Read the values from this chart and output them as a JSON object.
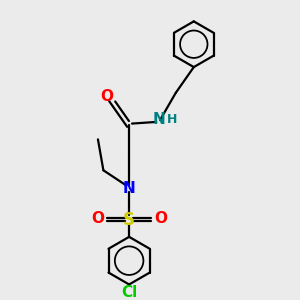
{
  "bg_color": "#ebebeb",
  "bond_color": "#000000",
  "atom_colors": {
    "O": "#ff0000",
    "N_amide": "#0000ff",
    "N_amine": "#008080",
    "S": "#cccc00",
    "Cl": "#00cc00",
    "H": "#008080"
  },
  "figsize": [
    3.0,
    3.0
  ],
  "dpi": 100,
  "lw": 1.6,
  "font_size": 10
}
